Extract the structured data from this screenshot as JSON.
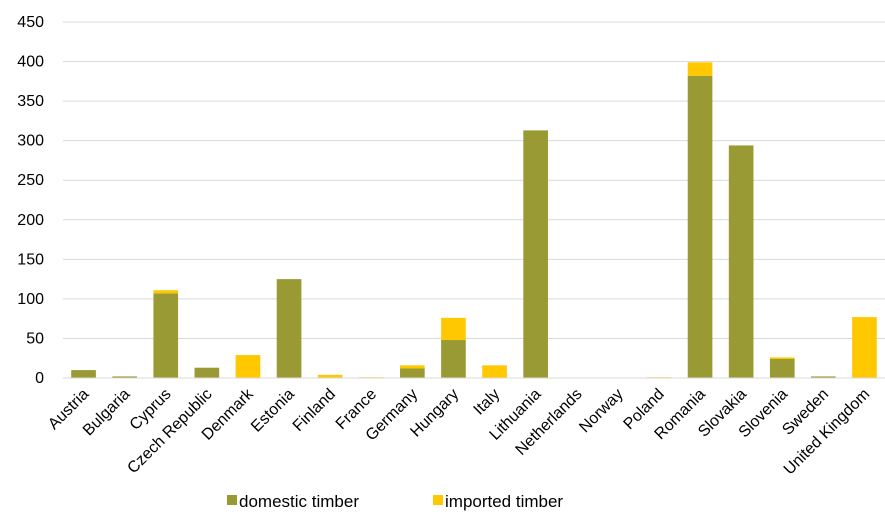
{
  "chart_data": {
    "type": "bar",
    "stacked": true,
    "categories": [
      "Austria",
      "Bulgaria",
      "Cyprus",
      "Czech Republic",
      "Denmark",
      "Estonia",
      "Finland",
      "France",
      "Germany",
      "Hungary",
      "Italy",
      "Lithuania",
      "Netherlands",
      "Norway",
      "Poland",
      "Romania",
      "Slovakia",
      "Slovenia",
      "Sweden",
      "United Kingdom"
    ],
    "series": [
      {
        "name": "domestic timber",
        "color": "#9a9a35",
        "values": [
          10,
          2,
          107,
          13,
          0,
          125,
          0,
          0,
          12,
          48,
          0,
          313,
          0,
          0,
          0,
          382,
          294,
          24,
          2,
          0
        ]
      },
      {
        "name": "imported timber",
        "color": "#ffc800",
        "values": [
          0,
          0,
          4,
          0,
          29,
          0,
          4,
          1,
          4,
          28,
          16,
          0,
          0,
          0,
          1,
          17,
          0,
          2,
          0,
          77
        ]
      }
    ],
    "yticks": [
      0,
      50,
      100,
      150,
      200,
      250,
      300,
      350,
      400,
      450
    ],
    "ylim": [
      0,
      450
    ],
    "grid": true,
    "legend_position": "bottom",
    "title": "",
    "xlabel": "",
    "ylabel": ""
  }
}
